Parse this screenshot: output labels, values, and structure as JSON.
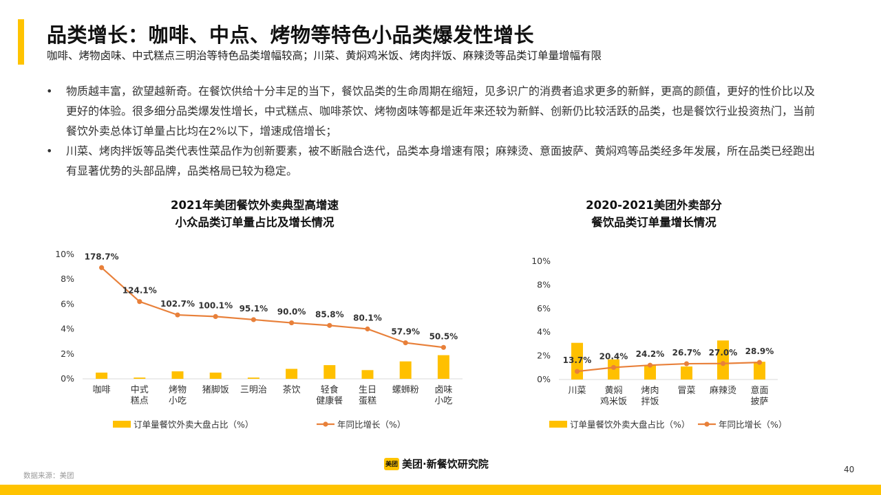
{
  "colors": {
    "accent": "#ffc300",
    "bar": "#ffc000",
    "line": "#e8803a",
    "axis": "#d9d9d9",
    "text": "#333333"
  },
  "header": {
    "title": "品类增长：咖啡、中点、烤物等特色小品类爆发性增长",
    "subtitle": "咖啡、烤物卤味、中式糕点三明治等特色品类增幅较高；川菜、黄焖鸡米饭、烤肉拌饭、麻辣烫等品类订单量增幅有限"
  },
  "bullets": [
    {
      "dot": "•",
      "text": "物质越丰富，欲望越新奇。在餐饮供给十分丰足的当下，餐饮品类的生命周期在缩短，见多识广的消费者追求更多的新鲜，更高的颜值，更好的性价比以及更好的体验。很多细分品类爆发性增长，中式糕点、咖啡茶饮、烤物卤味等都是近年来还较为新鲜、创新仍比较活跃的品类，也是餐饮行业投资热门，当前餐饮外卖总体订单量占比均在2%以下，增速成倍增长；"
    },
    {
      "dot": "•",
      "text": "川菜、烤肉拌饭等品类代表性菜品作为创新要素，被不断融合迭代，品类本身增速有限；麻辣烫、意面披萨、黄焖鸡等品类经多年发展，所在品类已经跑出有显著优势的头部品牌，品类格局已较为稳定。"
    }
  ],
  "footer": {
    "source": "数据来源：美团",
    "brand_badge": "美团",
    "brand_name": "美团·新餐饮研究院",
    "page_number": "40"
  },
  "chart_data": [
    {
      "type": "bar",
      "title_lines": [
        "2021年美团餐饮外卖典型高增速",
        "小众品类订单量占比及增长情况"
      ],
      "categories": [
        [
          "咖啡"
        ],
        [
          "中式",
          "糕点"
        ],
        [
          "烤物",
          "小吃"
        ],
        [
          "猪脚饭"
        ],
        [
          "三明治"
        ],
        [
          "茶饮"
        ],
        [
          "轻食",
          "健康餐"
        ],
        [
          "生日",
          "蛋糕"
        ],
        [
          "螺蛳粉"
        ],
        [
          "卤味",
          "小吃"
        ]
      ],
      "y_ticks": [
        "0%",
        "2%",
        "4%",
        "6%",
        "8%",
        "10%"
      ],
      "ylim": [
        0,
        10
      ],
      "series": [
        {
          "name": "订单量餐饮外卖大盘占比（%）",
          "type": "bar",
          "values": [
            0.5,
            0.1,
            0.6,
            0.5,
            0.1,
            0.8,
            1.1,
            0.7,
            1.4,
            1.9
          ]
        },
        {
          "name": "年同比增长（%）",
          "type": "line",
          "values": [
            178.7,
            124.1,
            102.7,
            100.1,
            95.1,
            90.0,
            85.8,
            80.1,
            57.9,
            50.5
          ],
          "labels": [
            "178.7%",
            "124.1%",
            "102.7%",
            "100.1%",
            "95.1%",
            "90.0%",
            "85.8%",
            "80.1%",
            "57.9%",
            "50.5%"
          ]
        }
      ],
      "line_scale_pct_per_axis_pct": 20,
      "legend": [
        {
          "kind": "bar",
          "label": "订单量餐饮外卖大盘占比（%）"
        },
        {
          "kind": "line",
          "label": "年同比增长（%）"
        }
      ],
      "legend_position": "bottom"
    },
    {
      "type": "bar",
      "title_lines": [
        "2020-2021美团外卖部分",
        "餐饮品类订单量增长情况"
      ],
      "categories": [
        [
          "川菜"
        ],
        [
          "黄焖",
          "鸡米饭"
        ],
        [
          "烤肉",
          "拌饭"
        ],
        [
          "冒菜"
        ],
        [
          "麻辣烫"
        ],
        [
          "意面",
          "披萨"
        ]
      ],
      "y_ticks": [
        "0%",
        "2%",
        "4%",
        "6%",
        "8%",
        "10%"
      ],
      "ylim": [
        0,
        10
      ],
      "series": [
        {
          "name": "订单量餐饮外卖大盘占比（%）",
          "type": "bar",
          "values": [
            3.1,
            1.7,
            1.2,
            1.1,
            3.3,
            1.5
          ]
        },
        {
          "name": "年同比增长（%）",
          "type": "line",
          "values": [
            13.7,
            20.4,
            24.2,
            26.7,
            27.0,
            28.9
          ],
          "labels": [
            "13.7%",
            "20.4%",
            "24.2%",
            "26.7%",
            "27.0%",
            "28.9%"
          ]
        }
      ],
      "line_scale_pct_per_axis_pct": 20,
      "legend": [
        {
          "kind": "bar",
          "label": "订单量餐饮外卖大盘占比（%）"
        },
        {
          "kind": "line",
          "label": "年同比增长（%）"
        }
      ],
      "legend_position": "bottom"
    }
  ]
}
